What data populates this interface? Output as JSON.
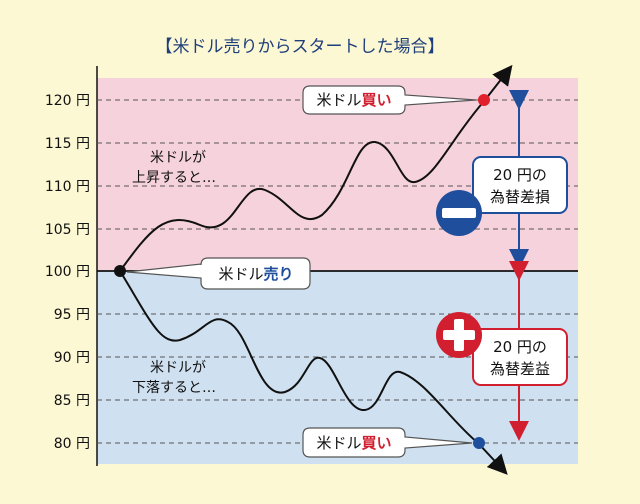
{
  "title": "【米ドル売りからスタートした場合】",
  "y_ticks": [
    "120 円",
    "115 円",
    "110 円",
    "105 円",
    "100 円",
    "95 円",
    "90 円",
    "85 円",
    "80 円"
  ],
  "callout_buy_top": {
    "prefix": "米ドル",
    "highlight": "買い"
  },
  "callout_buy_bottom": {
    "prefix": "米ドル",
    "highlight": "買い"
  },
  "callout_sell": {
    "prefix": "米ドル",
    "highlight": "売り"
  },
  "note_up": [
    "米ドルが",
    "上昇すると…"
  ],
  "note_down": [
    "米ドルが",
    "下落すると…"
  ],
  "loss_box": [
    "20 円の",
    "為替差損"
  ],
  "gain_box": [
    "20 円の",
    "為替差益"
  ],
  "colors": {
    "loss_zone": "#f6d3dc",
    "gain_zone": "#cfe1f1",
    "loss": "#1f4e9c",
    "gain": "#d21f2f",
    "background": "#fdf8d4",
    "callout_highlight_sell": "#1f4e9c",
    "callout_highlight_buy": "#d21f2f"
  },
  "icons": {
    "minus": "minus-circle-icon",
    "plus": "plus-circle-icon"
  }
}
